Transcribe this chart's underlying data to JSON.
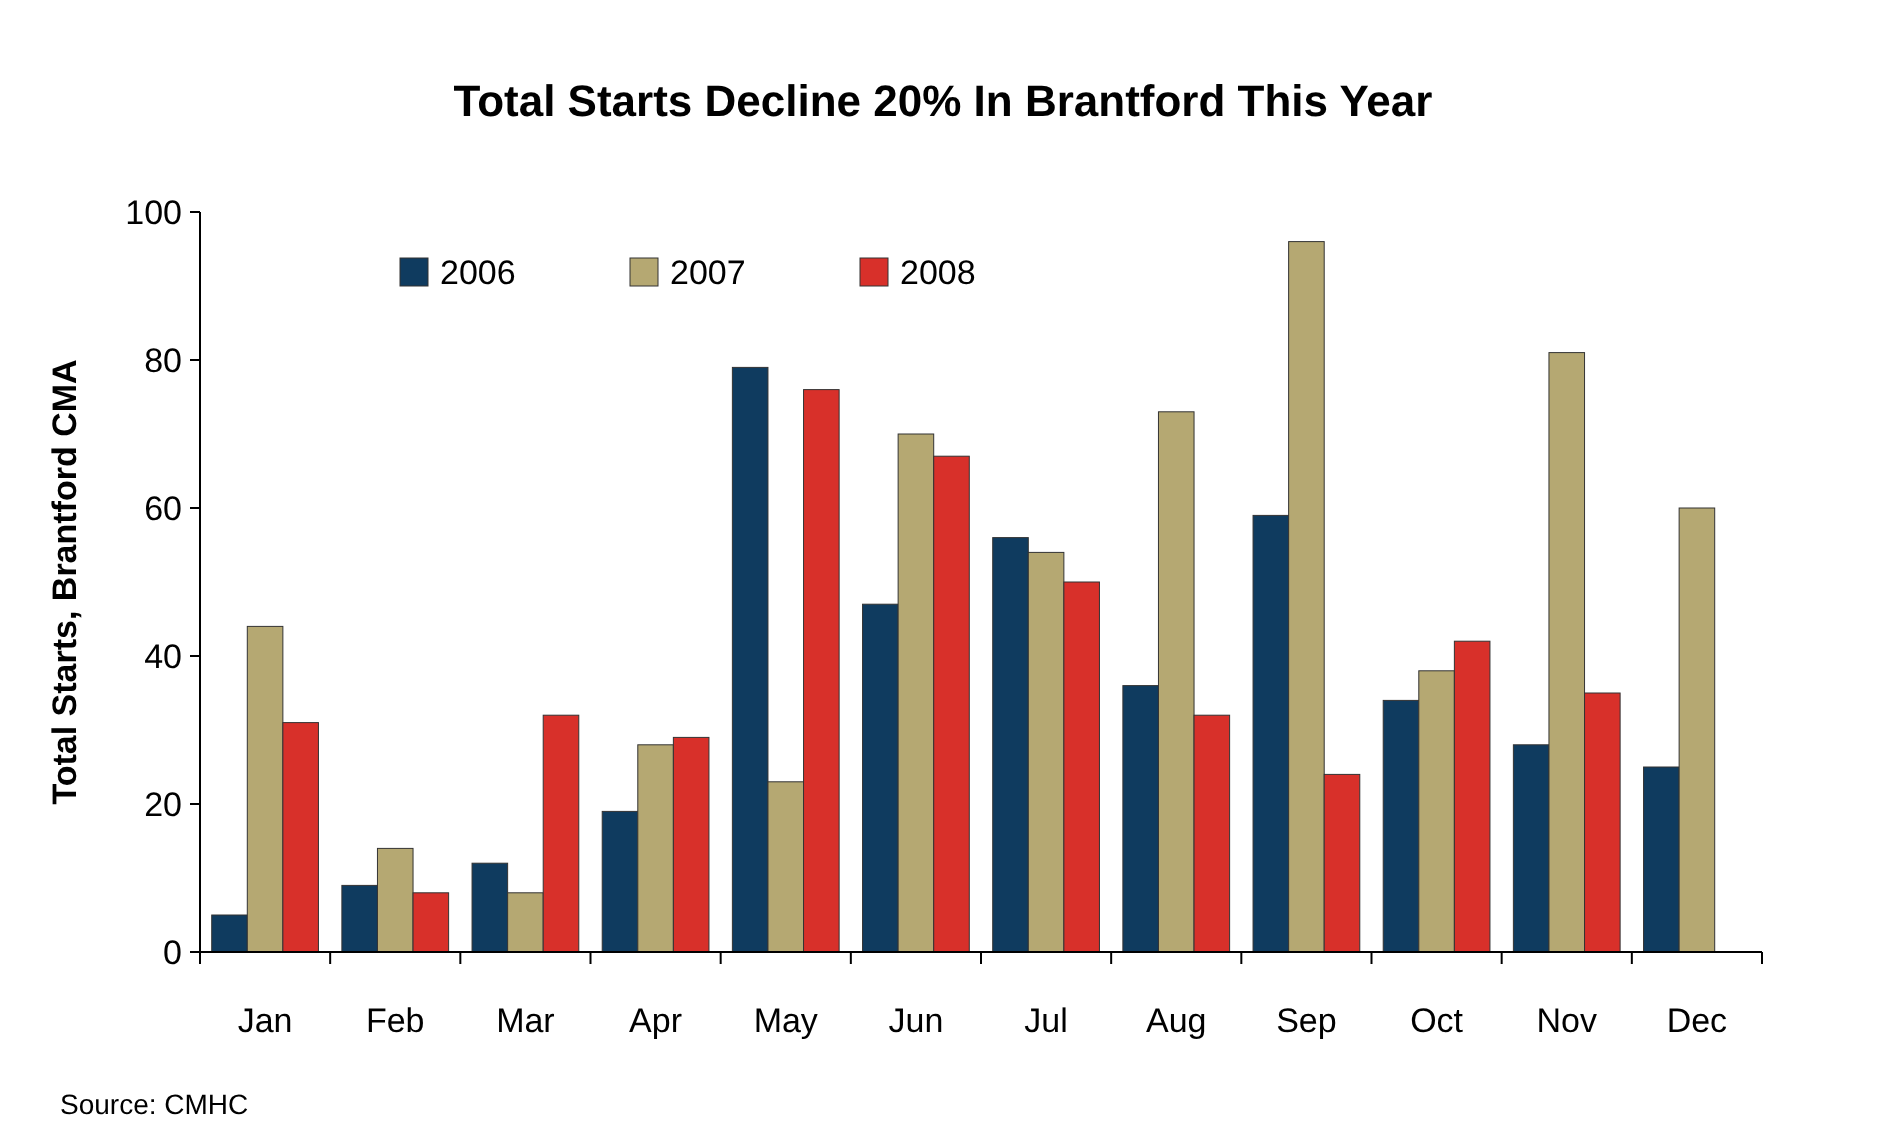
{
  "chart_data": {
    "type": "bar",
    "title": "Total Starts Decline 20% In Brantford This Year",
    "ylabel": "Total Starts, Brantford CMA",
    "categories": [
      "Jan",
      "Feb",
      "Mar",
      "Apr",
      "May",
      "Jun",
      "Jul",
      "Aug",
      "Sep",
      "Oct",
      "Nov",
      "Dec"
    ],
    "series": [
      {
        "name": "2006",
        "color": "#0f3b5f",
        "values": [
          5,
          9,
          12,
          19,
          79,
          47,
          56,
          36,
          59,
          34,
          28,
          25
        ]
      },
      {
        "name": "2007",
        "color": "#b5a872",
        "values": [
          44,
          14,
          8,
          28,
          23,
          70,
          54,
          73,
          96,
          38,
          81,
          60
        ]
      },
      {
        "name": "2008",
        "color": "#d8302a",
        "values": [
          31,
          8,
          32,
          29,
          76,
          67,
          50,
          32,
          24,
          42,
          35,
          null
        ]
      }
    ],
    "ylim": [
      0,
      100
    ],
    "yticks": [
      0,
      20,
      40,
      60,
      80,
      100
    ],
    "grid": false,
    "legend": "top left",
    "annotations": [
      "Source: CMHC"
    ]
  }
}
